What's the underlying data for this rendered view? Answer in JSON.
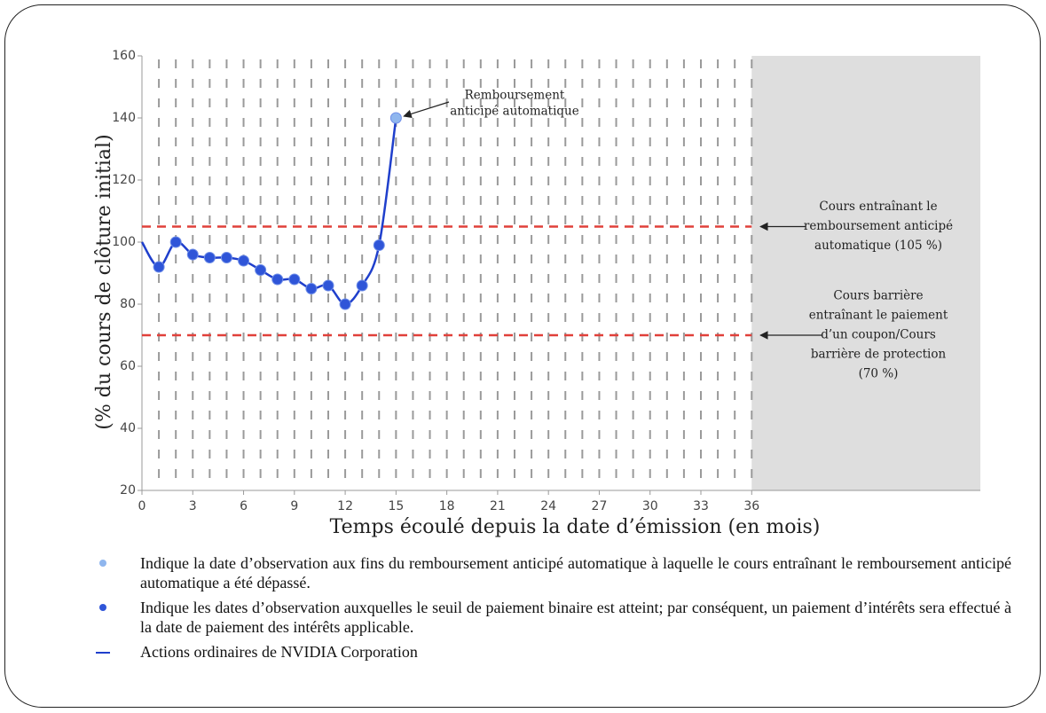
{
  "chart_data": {
    "type": "line",
    "xlabel": "Temps écoulé depuis la date d’émission (en mois)",
    "ylabel": "(% du cours de clôture initial)",
    "xlim": [
      0,
      49.5
    ],
    "xticks": [
      0,
      3,
      6,
      9,
      12,
      15,
      18,
      21,
      24,
      27,
      30,
      33,
      36
    ],
    "ylim": [
      20,
      160
    ],
    "yticks": [
      20,
      40,
      60,
      80,
      100,
      120,
      140,
      160
    ],
    "shade": [
      36,
      49.5
    ],
    "series": [
      {
        "name": "Indique la date d’observation aux fins du remboursement anticipé automatique à laquelle le cours entraînant le remboursement anticipé automatique a été dépassé.",
        "style": "marker",
        "color": "#8fb6ee",
        "x": [
          15
        ],
        "values": [
          140
        ]
      },
      {
        "name": "Indique les dates d’observation auxquelles le seuil de paiement binaire est atteint; par conséquent, un paiement d’intérêts sera effectué à la date de paiement des intérêts applicable.",
        "style": "marker",
        "color": "#2f55d8",
        "x": [
          1,
          2,
          3,
          4,
          5,
          6,
          7,
          8,
          9,
          10,
          11,
          12,
          13,
          14
        ],
        "values": [
          92,
          100,
          96,
          95,
          95,
          94,
          91,
          88,
          88,
          85,
          86,
          80,
          86,
          99
        ]
      },
      {
        "name": "Actions ordinaires de NVIDIA Corporation",
        "style": "line",
        "color": "#1f3fcc",
        "x": [
          0,
          1,
          2,
          3,
          4,
          5,
          6,
          7,
          8,
          9,
          10,
          11,
          12,
          13,
          14,
          15
        ],
        "values": [
          100,
          92,
          100,
          96,
          95,
          95,
          94,
          91,
          88,
          88,
          85,
          86,
          80,
          86,
          99,
          140
        ]
      }
    ],
    "hlines": [
      {
        "value": 105,
        "color": "#e0403a",
        "label": [
          "Cours entraînant le",
          "remboursement anticipé",
          "automatique (105 %)"
        ]
      },
      {
        "value": 70,
        "color": "#e0403a",
        "label": [
          "Cours barrière",
          "entraînant le paiement",
          "d’un coupon/Cours",
          "barrière de protection",
          "(70 %)"
        ]
      }
    ],
    "point_annotation": {
      "x": 15,
      "y": 140,
      "text": [
        "Remboursement",
        "anticipé automatique"
      ]
    }
  }
}
